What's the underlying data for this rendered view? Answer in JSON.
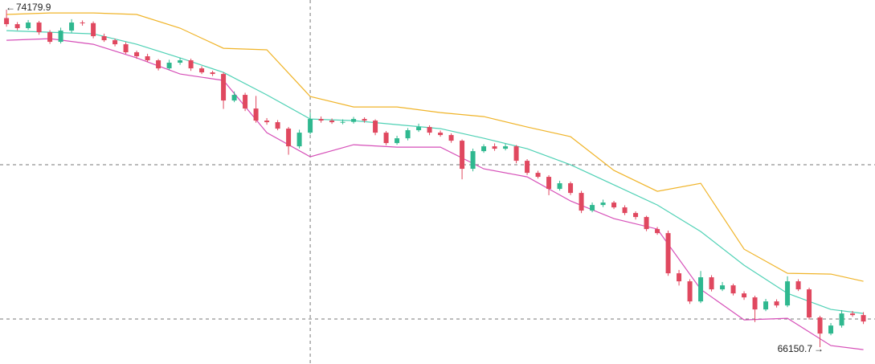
{
  "chart_data": {
    "type": "candlestick",
    "xlim": [
      -0.6,
      80.07
    ],
    "ylim": [
      65750,
      74410
    ],
    "up_color": "#2fb88f",
    "down_color": "#e0485f",
    "open": [
      73980,
      73835,
      73740,
      73874,
      73644,
      73415,
      73682,
      73874,
      73860,
      73549,
      73453,
      73357,
      73166,
      73071,
      72975,
      72784,
      72918,
      72975,
      72784,
      72688,
      72650,
      72019,
      72153,
      71828,
      71541,
      71503,
      71350,
      70929,
      71254,
      71579,
      71541,
      71503,
      71510,
      71579,
      71541,
      71254,
      71006,
      71120,
      71312,
      71388,
      71254,
      71197,
      71063,
      70394,
      70814,
      70929,
      70872,
      70929,
      70585,
      70298,
      70203,
      69916,
      70050,
      69820,
      69400,
      69533,
      69591,
      69476,
      69342,
      69247,
      68960,
      68864,
      67908,
      67717,
      67239,
      67813,
      67526,
      67621,
      67430,
      67335,
      67048,
      67239,
      67143,
      67717,
      67526,
      66857,
      66474,
      66665,
      66952,
      66914
    ],
    "high": [
      74179.9,
      73885,
      73934,
      73914,
      73694,
      73752,
      73954,
      73924,
      73900,
      73609,
      73493,
      73407,
      73206,
      73131,
      73005,
      72988,
      73035,
      73015,
      72834,
      72728,
      72690,
      72233,
      72203,
      72128,
      71601,
      71553,
      71390,
      71324,
      71729,
      71639,
      71591,
      71570,
      71629,
      71619,
      71571,
      71294,
      71180,
      71362,
      71468,
      71428,
      71304,
      71237,
      71093,
      70874,
      70979,
      70999,
      70989,
      70959,
      70625,
      70348,
      70243,
      70110,
      70090,
      69870,
      69593,
      69661,
      69631,
      69526,
      69382,
      69277,
      69010,
      68924,
      67988,
      67767,
      67963,
      67863,
      67701,
      67661,
      67480,
      67375,
      67299,
      67289,
      67837,
      67767,
      67566,
      66897,
      66725,
      67032,
      67012,
      66984
    ],
    "low": [
      73775,
      73690,
      73700,
      73584,
      73365,
      73375,
      73632,
      73800,
      73499,
      73413,
      73307,
      73126,
      73011,
      72935,
      72734,
      72744,
      72868,
      72724,
      72648,
      72600,
      71819,
      71979,
      71768,
      71491,
      71443,
      71310,
      70729,
      70879,
      71214,
      71491,
      71463,
      71453,
      71470,
      71491,
      71194,
      70956,
      70966,
      71070,
      71272,
      71194,
      71157,
      71013,
      70144,
      70334,
      70774,
      70822,
      70832,
      70525,
      70248,
      70163,
      69766,
      69876,
      69770,
      69340,
      69360,
      69483,
      69436,
      69292,
      69187,
      68910,
      68824,
      67848,
      67617,
      67179,
      67199,
      67476,
      67486,
      67380,
      67275,
      66748,
      67008,
      67093,
      67103,
      67486,
      66807,
      66150.7,
      66434,
      66615,
      66874,
      66701
    ],
    "close": [
      73835,
      73740,
      73874,
      73644,
      73415,
      73682,
      73874,
      73860,
      73549,
      73453,
      73357,
      73166,
      73071,
      72975,
      72784,
      72918,
      72975,
      72784,
      72688,
      72650,
      72019,
      72153,
      71828,
      71541,
      71503,
      71350,
      70929,
      71254,
      71579,
      71541,
      71503,
      71510,
      71579,
      71541,
      71254,
      71006,
      71120,
      71312,
      71388,
      71254,
      71197,
      71063,
      70394,
      70814,
      70929,
      70872,
      70929,
      70585,
      70298,
      70203,
      69916,
      70050,
      69820,
      69400,
      69533,
      69591,
      69476,
      69342,
      69247,
      68960,
      68864,
      67908,
      67717,
      67239,
      67813,
      67526,
      67621,
      67430,
      67335,
      67048,
      67239,
      67143,
      67717,
      67526,
      66857,
      66474,
      66665,
      66952,
      66914,
      66761
    ],
    "series": [
      {
        "color": "#f0b429",
        "x": [
          0,
          4,
          8,
          12,
          16,
          20,
          24,
          28,
          32,
          36,
          40,
          44,
          48,
          52,
          56,
          60,
          64,
          68,
          72,
          76,
          79
        ],
        "values": [
          74065,
          74103,
          74103,
          74065,
          73740,
          73262,
          73224,
          72115,
          71866,
          71866,
          71732,
          71637,
          71388,
          71159,
          70356,
          69858,
          70050,
          68482,
          67908,
          67889,
          67717
        ]
      },
      {
        "color": "#4fd1b5",
        "x": [
          0,
          4,
          8,
          12,
          16,
          20,
          24,
          28,
          32,
          36,
          40,
          44,
          48,
          52,
          56,
          60,
          64,
          68,
          72,
          76,
          79
        ],
        "values": [
          73682,
          73644,
          73606,
          73357,
          73032,
          72688,
          72153,
          71579,
          71541,
          71445,
          71350,
          71120,
          70872,
          70489,
          70012,
          69533,
          68902,
          68099,
          67430,
          67048,
          66952
        ]
      },
      {
        "color": "#d64fb8",
        "x": [
          0,
          4,
          8,
          12,
          16,
          20,
          24,
          28,
          32,
          36,
          40,
          44,
          48,
          52,
          56,
          60,
          64,
          68,
          72,
          76,
          79
        ],
        "values": [
          73453,
          73491,
          73357,
          73032,
          72650,
          72497,
          71254,
          70681,
          70967,
          70910,
          70910,
          70394,
          70203,
          69629,
          69208,
          68960,
          67526,
          66799,
          66837,
          66187,
          66092
        ]
      }
    ],
    "hlines": [
      70490,
      66820
    ],
    "vlines": [
      28
    ]
  }
}
